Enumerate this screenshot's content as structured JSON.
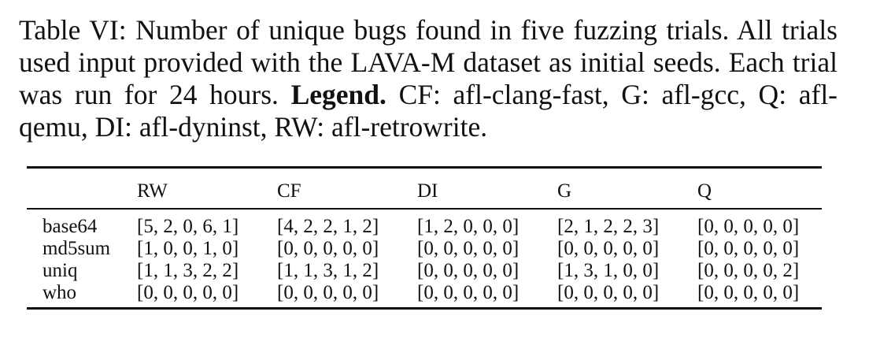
{
  "caption": {
    "lead": "Table VI: Number of unique bugs found in five fuzzing trials. All trials used input provided with the LAVA-M dataset as initial seeds. Each trial was run for 24 hours. ",
    "legend_label": "Legend.",
    "legend_text": " CF: afl-clang-fast, G: afl-gcc, Q: afl-qemu, DI: afl-dyninst, RW: afl-retrowrite."
  },
  "table": {
    "headers": [
      "",
      "RW",
      "CF",
      "DI",
      "G",
      "Q"
    ],
    "rows": [
      {
        "name": "base64",
        "cells": [
          "[5, 2, 0, 6, 1]",
          "[4, 2, 2, 1, 2]",
          "[1, 2, 0, 0, 0]",
          "[2, 1, 2, 2, 3]",
          "[0, 0, 0, 0, 0]"
        ]
      },
      {
        "name": "md5sum",
        "cells": [
          "[1, 0, 0, 1, 0]",
          "[0, 0, 0, 0, 0]",
          "[0, 0, 0, 0, 0]",
          "[0, 0, 0, 0, 0]",
          "[0, 0, 0, 0, 0]"
        ]
      },
      {
        "name": "uniq",
        "cells": [
          "[1, 1, 3, 2, 2]",
          "[1, 1, 3, 1, 2]",
          "[0, 0, 0, 0, 0]",
          "[1, 3, 1, 0, 0]",
          "[0, 0, 0, 0, 2]"
        ]
      },
      {
        "name": "who",
        "cells": [
          "[0, 0, 0, 0, 0]",
          "[0, 0, 0, 0, 0]",
          "[0, 0, 0, 0, 0]",
          "[0, 0, 0, 0, 0]",
          "[0, 0, 0, 0, 0]"
        ]
      }
    ]
  }
}
